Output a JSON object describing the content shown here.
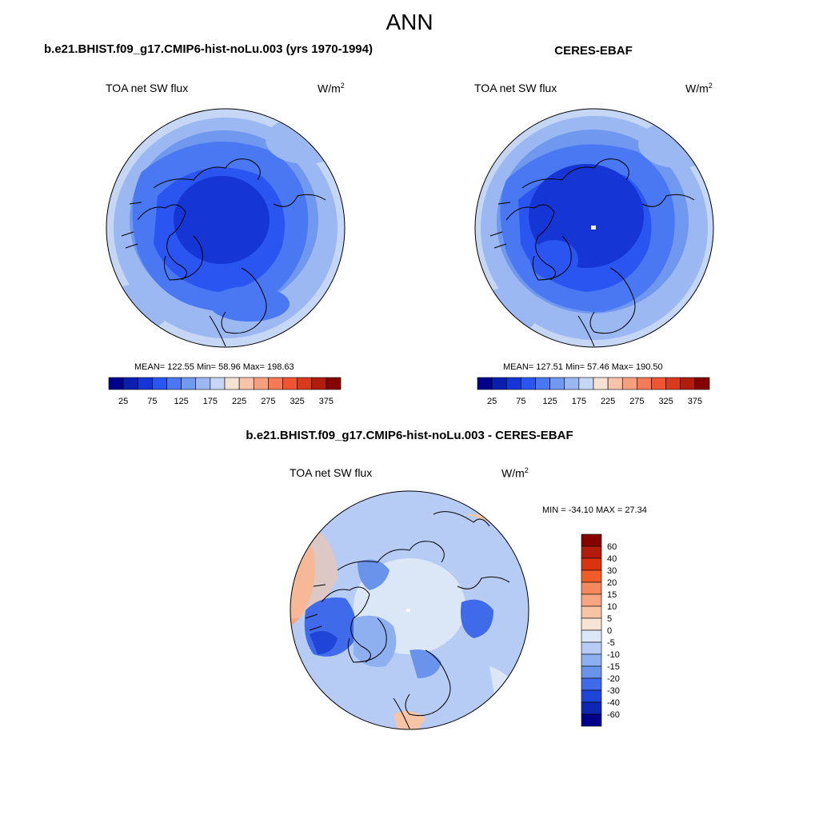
{
  "page": {
    "title": "ANN",
    "panels": [
      {
        "title": "b.e21.BHIST.f09_g17.CMIP6-hist-noLu.003 (yrs 1970-1994)",
        "variable": "TOA net SW flux",
        "units": "W/m",
        "units_sup": "2",
        "stats": "MEAN= 122.55  Min=  58.96  Max= 198.63"
      },
      {
        "title": "CERES-EBAF",
        "variable": "TOA net SW flux",
        "units": "W/m",
        "units_sup": "2",
        "stats": "MEAN= 127.51  Min=  57.46  Max= 190.50"
      }
    ],
    "diff": {
      "title": "b.e21.BHIST.f09_g17.CMIP6-hist-noLu.003 - CERES-EBAF",
      "variable": "TOA net SW flux",
      "units": "W/m",
      "units_sup": "2",
      "stats": "MIN = -34.10 MAX =  27.34"
    }
  },
  "colorbars": {
    "abs": {
      "labels": [
        "25",
        "75",
        "125",
        "175",
        "225",
        "275",
        "325",
        "375"
      ],
      "colors": [
        "#00008b",
        "#0a1fb0",
        "#1536d4",
        "#2a55f0",
        "#4a78f2",
        "#7098ef",
        "#9cb8f2",
        "#c6d7f5",
        "#f6e2d2",
        "#f9c3aa",
        "#f7a07f",
        "#f47b55",
        "#ef5533",
        "#d73a1c",
        "#b01d0c",
        "#860000"
      ]
    },
    "diff": {
      "labels": [
        "60",
        "40",
        "30",
        "20",
        "15",
        "10",
        "5",
        "0",
        "-5",
        "-10",
        "-15",
        "-20",
        "-30",
        "-40",
        "-60"
      ],
      "colors": [
        "#860000",
        "#b21c0c",
        "#d9330f",
        "#f25c28",
        "#f5895e",
        "#f7a583",
        "#f7c4a6",
        "#f8e4d4",
        "#dbe7f7",
        "#b7ccf5",
        "#8fb0f0",
        "#6a93ec",
        "#3f6bea",
        "#1f45d8",
        "#0f26b0",
        "#00008b"
      ]
    }
  }
}
